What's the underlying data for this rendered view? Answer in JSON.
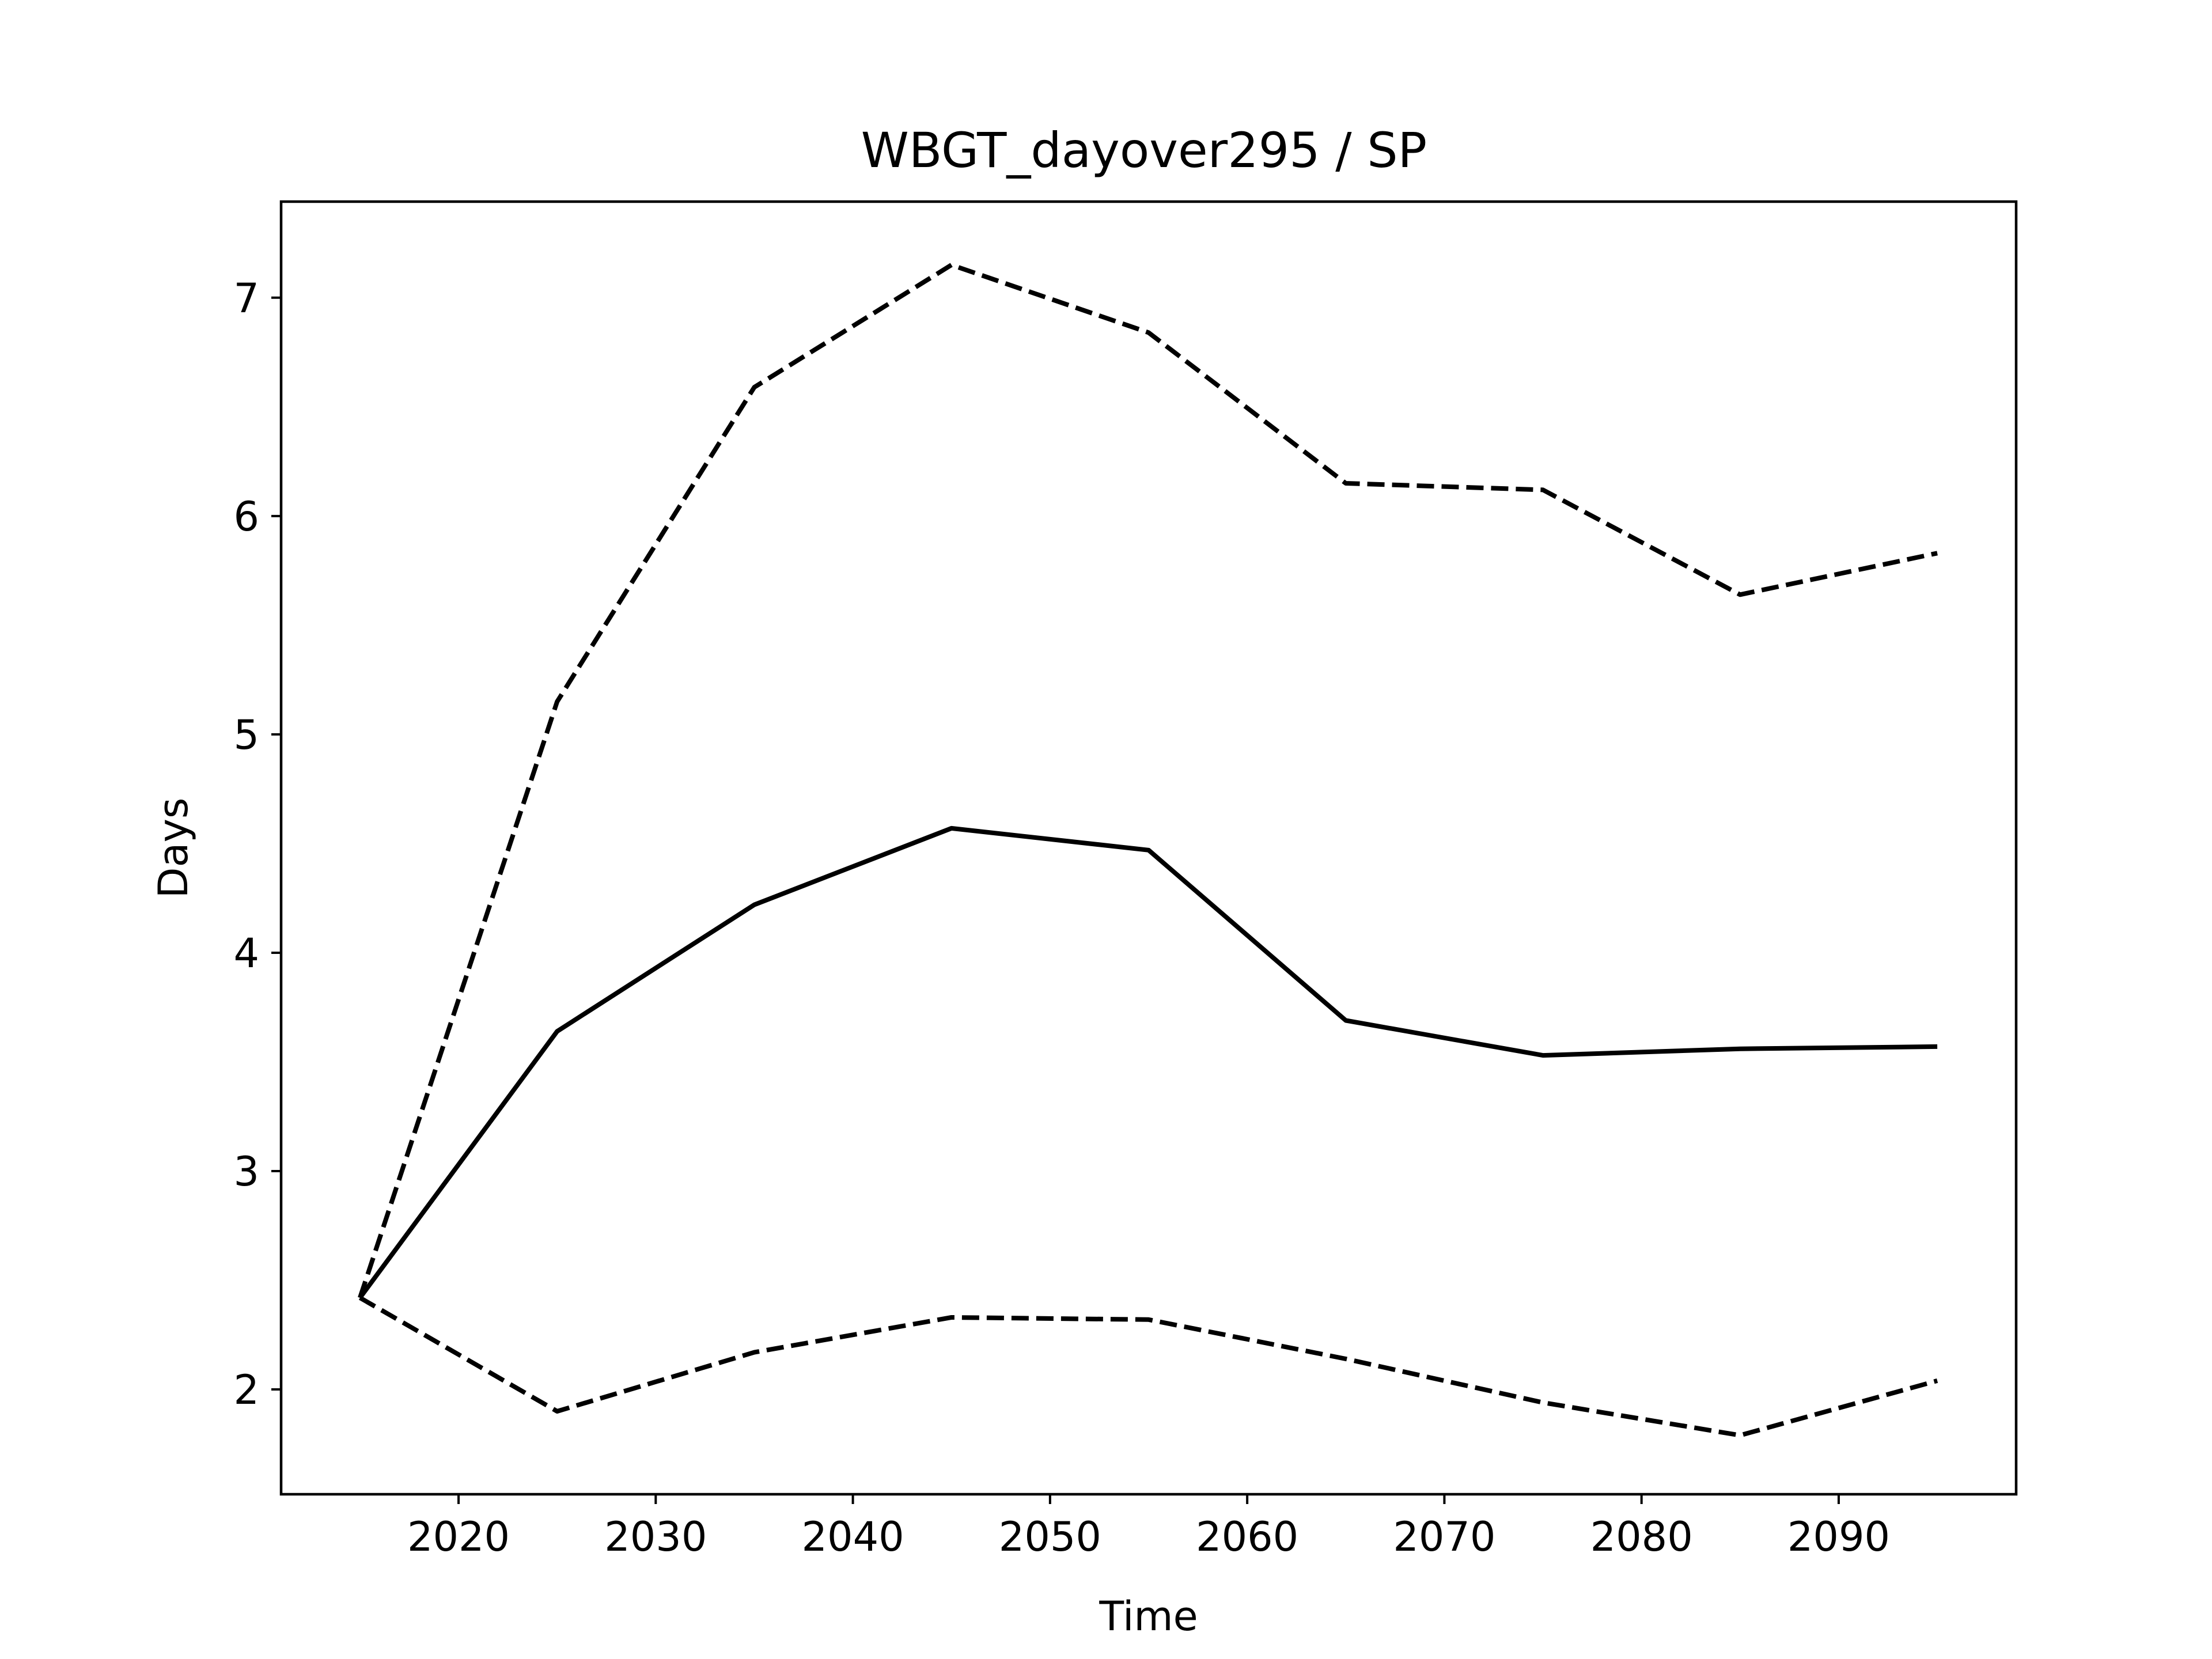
{
  "chart_data": {
    "type": "line",
    "title": "WBGT_dayover295 / SP",
    "xlabel": "Time",
    "ylabel": "Days",
    "xlim": [
      2011,
      2099
    ],
    "ylim": [
      1.52,
      7.44
    ],
    "xticks": [
      2020,
      2030,
      2040,
      2050,
      2060,
      2070,
      2080,
      2090
    ],
    "yticks": [
      2,
      3,
      4,
      5,
      6,
      7
    ],
    "grid": false,
    "x": [
      2015,
      2025,
      2035,
      2045,
      2055,
      2065,
      2075,
      2085,
      2095
    ],
    "series": [
      {
        "style": "solid",
        "color": "#000000",
        "values": [
          2.42,
          3.64,
          4.22,
          4.57,
          4.47,
          3.69,
          3.53,
          3.56,
          3.57
        ]
      },
      {
        "style": "dashed",
        "color": "#000000",
        "values": [
          2.42,
          5.15,
          6.59,
          7.15,
          6.84,
          6.15,
          6.12,
          5.64,
          5.83
        ]
      },
      {
        "style": "dashed",
        "color": "#000000",
        "values": [
          2.42,
          1.9,
          2.17,
          2.33,
          2.32,
          2.14,
          1.94,
          1.79,
          2.04
        ]
      }
    ]
  }
}
